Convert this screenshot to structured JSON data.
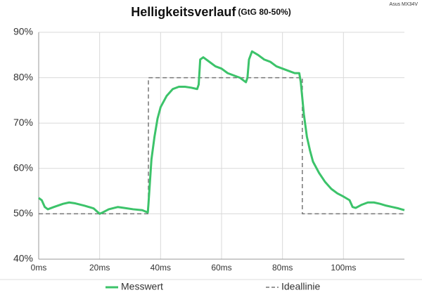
{
  "chart_data": {
    "type": "line",
    "title": "Helligkeitsverlauf",
    "subtitle": "(GtG 80-50%)",
    "annotation": "Asus MX34V",
    "xlim": [
      0,
      120
    ],
    "ylim": [
      40,
      90
    ],
    "xticks": [
      {
        "value": 0,
        "label": "0ms"
      },
      {
        "value": 20,
        "label": "20ms"
      },
      {
        "value": 40,
        "label": "40ms"
      },
      {
        "value": 60,
        "label": "60ms"
      },
      {
        "value": 80,
        "label": "80ms"
      },
      {
        "value": 100,
        "label": "100ms"
      }
    ],
    "yticks": [
      {
        "value": 40,
        "label": "40%"
      },
      {
        "value": 50,
        "label": "50%"
      },
      {
        "value": 60,
        "label": "60%"
      },
      {
        "value": 70,
        "label": "70%"
      },
      {
        "value": 80,
        "label": "80%"
      },
      {
        "value": 90,
        "label": "90%"
      }
    ],
    "grid": true,
    "legend": "bottom",
    "series": [
      {
        "name": "Messwert",
        "color": "#3cc36a",
        "style": "solid",
        "x": [
          0,
          1,
          2,
          3,
          5,
          8,
          10,
          12,
          15,
          18,
          20,
          21,
          23,
          26,
          28,
          31,
          34,
          35.8,
          36,
          37,
          38,
          39,
          40,
          42,
          44,
          46,
          48,
          50,
          52,
          52.5,
          53,
          54,
          56,
          58,
          60,
          62,
          64,
          66,
          68,
          68.5,
          69,
          70,
          72,
          74,
          76,
          78,
          80,
          82,
          84,
          85.5,
          86,
          87,
          88,
          89,
          90,
          92,
          94,
          96,
          98,
          100,
          102,
          103,
          104,
          106,
          108,
          110,
          112,
          114,
          116,
          118,
          120
        ],
        "values": [
          53.5,
          53,
          51.5,
          51,
          51.5,
          52.2,
          52.5,
          52.3,
          51.8,
          51.2,
          50,
          50.3,
          51,
          51.5,
          51.3,
          51,
          50.8,
          50.3,
          52,
          62,
          67,
          71,
          73.5,
          76,
          77.5,
          78,
          78,
          77.8,
          77.5,
          78.5,
          84,
          84.5,
          83.5,
          82.5,
          82,
          81,
          80.5,
          80,
          79,
          80,
          84,
          85.8,
          85,
          84,
          83.5,
          82.5,
          82,
          81.5,
          81,
          81,
          79,
          72,
          67,
          64,
          61.5,
          59,
          57,
          55.5,
          54.5,
          53.8,
          53,
          51.5,
          51.3,
          52,
          52.5,
          52.5,
          52.2,
          51.8,
          51.5,
          51.2,
          50.8
        ]
      },
      {
        "name": "Ideallinie",
        "color": "#777777",
        "style": "dashed",
        "x": [
          0,
          36,
          36,
          86.5,
          86.5,
          120
        ],
        "values": [
          50,
          50,
          80,
          80,
          50,
          50
        ]
      }
    ]
  }
}
